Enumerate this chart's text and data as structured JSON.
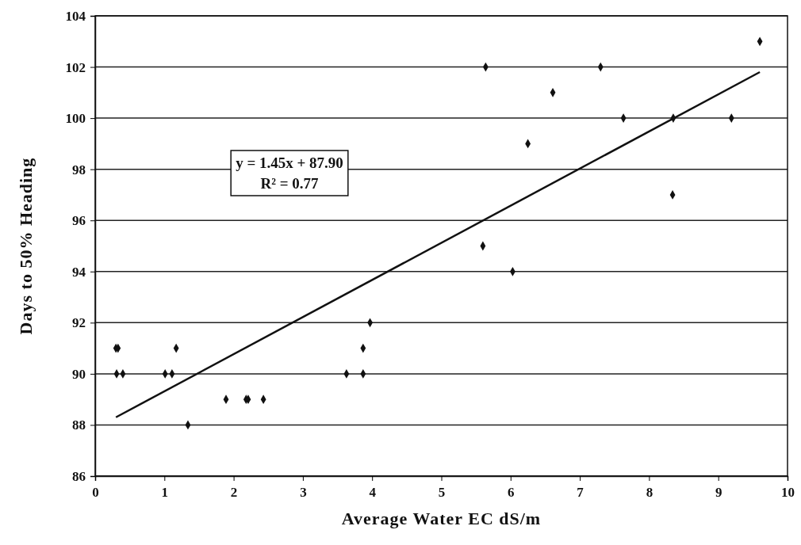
{
  "chart_data": {
    "type": "scatter",
    "xlabel": "Average Water EC dS/m",
    "ylabel": "Days to 50% Heading",
    "xlim": [
      0,
      10
    ],
    "xticks": [
      0,
      1,
      2,
      3,
      4,
      5,
      6,
      7,
      8,
      9,
      10
    ],
    "ylim": [
      86,
      104
    ],
    "yticks": [
      86,
      88,
      90,
      92,
      94,
      96,
      98,
      100,
      102,
      104
    ],
    "grid": "y",
    "marker": "diamond",
    "annotations": [
      {
        "text": "y = 1.45x + 87.90\nR² = 0.77"
      }
    ],
    "series": [
      {
        "color": "#111111",
        "x": [
          0.3,
          0.33,
          0.31,
          0.4,
          1.01,
          1.11,
          1.17,
          1.34,
          1.89,
          2.18,
          2.21,
          2.43,
          3.63,
          3.87,
          3.87,
          3.97,
          5.6,
          5.64,
          6.03,
          6.25,
          6.61,
          7.3,
          7.63,
          8.35,
          8.34,
          9.19,
          9.6
        ],
        "values": [
          91,
          91,
          90,
          90,
          90,
          90,
          91,
          88,
          89,
          89,
          89,
          89,
          90,
          90,
          91,
          92,
          95,
          102,
          94,
          99,
          101,
          102,
          100,
          100,
          97,
          100,
          103
        ]
      },
      {
        "type": "line",
        "color": "#111111",
        "x": [
          0.3,
          9.6
        ],
        "values": [
          88.3,
          101.8
        ],
        "marker": "none",
        "line_style": "solid"
      }
    ]
  }
}
